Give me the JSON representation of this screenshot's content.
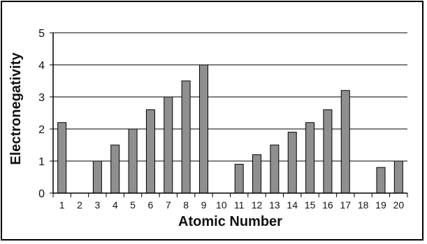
{
  "chart_data": {
    "type": "bar",
    "title": "",
    "xlabel": "Atomic Number",
    "ylabel": "Electronegativity",
    "ylim": [
      0,
      5
    ],
    "yticks": [
      "0",
      "1",
      "2",
      "3",
      "4",
      "5"
    ],
    "grid": true,
    "categories": [
      "1",
      "2",
      "3",
      "4",
      "5",
      "6",
      "7",
      "8",
      "9",
      "10",
      "11",
      "12",
      "13",
      "14",
      "15",
      "16",
      "17",
      "18",
      "19",
      "20"
    ],
    "values": [
      2.2,
      0,
      1.0,
      1.5,
      2.0,
      2.6,
      3.0,
      3.5,
      4.0,
      0,
      0.9,
      1.2,
      1.5,
      1.9,
      2.2,
      2.6,
      3.2,
      0,
      0.8,
      1.0
    ],
    "colors": {
      "bar_fill": "#8f8f8f",
      "bar_stroke": "#000000",
      "grid": "#000000"
    }
  }
}
